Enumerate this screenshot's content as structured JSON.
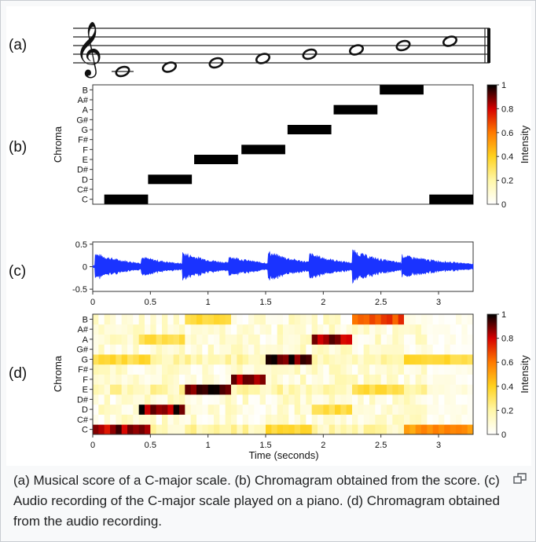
{
  "panel_labels": [
    "(a)",
    "(b)",
    "(c)",
    "(d)"
  ],
  "caption": "(a) Musical score of a C-major scale. (b) Chromagram obtained from the score. (c) Audio recording of the C-major scale played on a piano. (d) Chromagram obtained from the audio recording.",
  "colors": {
    "waveform": "#1a33ff",
    "frame_border": "#c8ccd1",
    "caption_text": "#202122"
  },
  "chart_data": [
    {
      "type": "score",
      "notes": [
        "C4",
        "D4",
        "E4",
        "F4",
        "G4",
        "A4",
        "B4",
        "C5"
      ]
    },
    {
      "type": "heatmap",
      "ylabel": "Chroma",
      "categories": [
        "C",
        "C#",
        "D",
        "D#",
        "E",
        "F",
        "F#",
        "G",
        "G#",
        "A",
        "A#",
        "B"
      ],
      "colorbar": {
        "label": "Intensity",
        "ticks": [
          0,
          0.2,
          0.4,
          0.6,
          0.8,
          1
        ]
      },
      "blocks": [
        {
          "chroma": "C",
          "start": 0.1,
          "end": 0.48,
          "value": 1
        },
        {
          "chroma": "D",
          "start": 0.48,
          "end": 0.86,
          "value": 1
        },
        {
          "chroma": "E",
          "start": 0.88,
          "end": 1.26,
          "value": 1
        },
        {
          "chroma": "F",
          "start": 1.29,
          "end": 1.67,
          "value": 1
        },
        {
          "chroma": "G",
          "start": 1.69,
          "end": 2.07,
          "value": 1
        },
        {
          "chroma": "A",
          "start": 2.09,
          "end": 2.47,
          "value": 1
        },
        {
          "chroma": "B",
          "start": 2.49,
          "end": 2.87,
          "value": 1
        },
        {
          "chroma": "C",
          "start": 2.92,
          "end": 3.3,
          "value": 1
        }
      ]
    },
    {
      "type": "line",
      "ylim": [
        -0.55,
        0.55
      ],
      "yticks": [
        -0.5,
        0,
        0.5
      ],
      "xticks": [
        0,
        0.5,
        1,
        1.5,
        2,
        2.5,
        3
      ],
      "xlim": [
        0,
        3.3
      ],
      "onsets": [
        0.02,
        0.42,
        0.78,
        1.18,
        1.52,
        1.88,
        2.25,
        2.68
      ],
      "amplitudes": [
        0.32,
        0.24,
        0.34,
        0.26,
        0.36,
        0.32,
        0.4,
        0.28
      ]
    },
    {
      "type": "heatmap",
      "ylabel": "Chroma",
      "xlabel": "Time (seconds)",
      "categories": [
        "C",
        "C#",
        "D",
        "D#",
        "E",
        "F",
        "F#",
        "G",
        "G#",
        "A",
        "A#",
        "B"
      ],
      "xticks": [
        0,
        0.5,
        1,
        1.5,
        2,
        2.5,
        3
      ],
      "xlim": [
        0,
        3.3
      ],
      "colorbar": {
        "label": "Intensity",
        "ticks": [
          0,
          0.2,
          0.4,
          0.6,
          0.8,
          1
        ]
      },
      "strong_segments": [
        {
          "chroma": "C",
          "start": 0.0,
          "end": 0.48,
          "value": 0.95
        },
        {
          "chroma": "D",
          "start": 0.42,
          "end": 0.78,
          "value": 1.0
        },
        {
          "chroma": "E",
          "start": 0.78,
          "end": 1.18,
          "value": 1.0
        },
        {
          "chroma": "F",
          "start": 1.18,
          "end": 1.52,
          "value": 0.92
        },
        {
          "chroma": "G",
          "start": 1.52,
          "end": 1.88,
          "value": 1.0
        },
        {
          "chroma": "A",
          "start": 1.88,
          "end": 2.25,
          "value": 0.95
        },
        {
          "chroma": "B",
          "start": 2.25,
          "end": 2.68,
          "value": 0.75
        },
        {
          "chroma": "C",
          "start": 2.68,
          "end": 3.3,
          "value": 0.6
        }
      ]
    }
  ]
}
